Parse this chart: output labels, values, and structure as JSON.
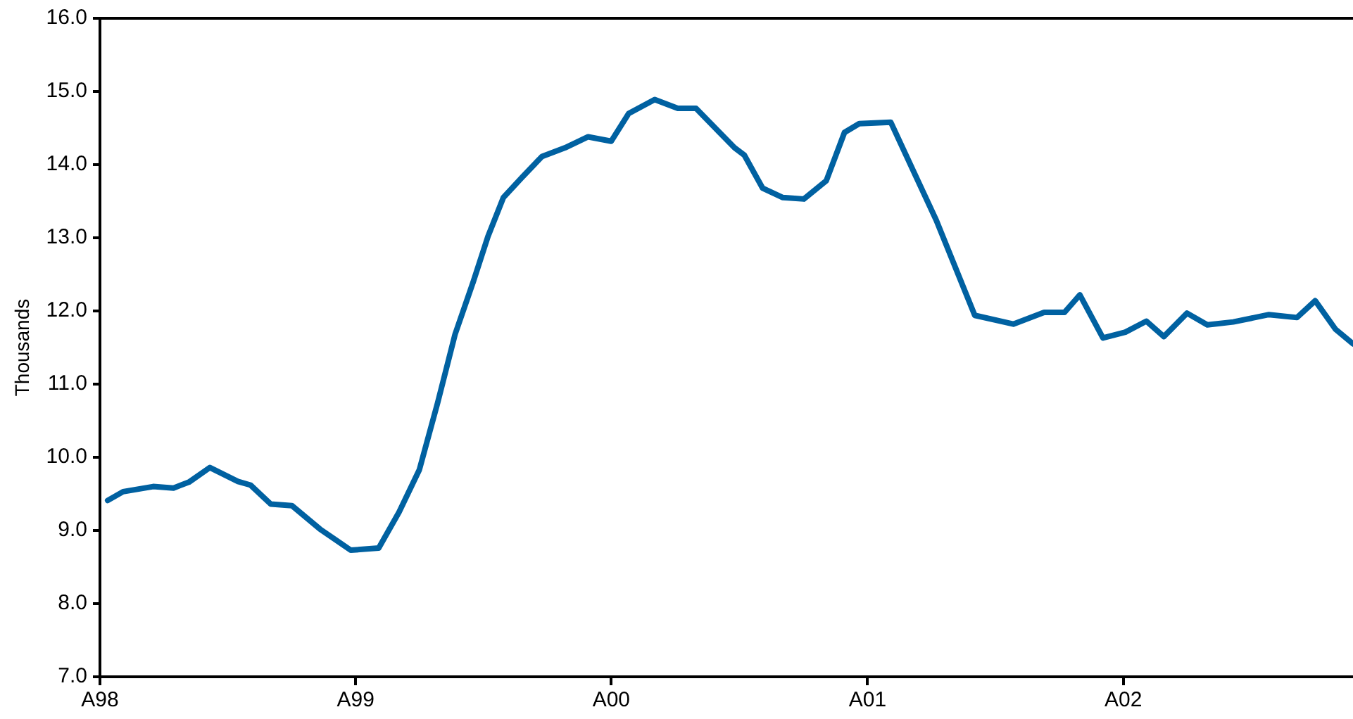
{
  "chart_data": {
    "type": "line",
    "ylabel": "Thousands",
    "xlim": [
      "1998-01-01",
      "2002-11-25"
    ],
    "xticks": [
      {
        "value": "1998-01-01",
        "label": "A98"
      },
      {
        "value": "1999-01-01",
        "label": "A99"
      },
      {
        "value": "2000-01-01",
        "label": "A00"
      },
      {
        "value": "2001-01-01",
        "label": "A01"
      },
      {
        "value": "2002-01-01",
        "label": "A02"
      }
    ],
    "ylim": [
      7,
      16
    ],
    "yticks": [
      {
        "value": 7,
        "label": "7.0"
      },
      {
        "value": 8,
        "label": "8.0"
      },
      {
        "value": 9,
        "label": "9.0"
      },
      {
        "value": 10,
        "label": "10.0"
      },
      {
        "value": 11,
        "label": "11.0"
      },
      {
        "value": 12,
        "label": "12.0"
      },
      {
        "value": 13,
        "label": "13.0"
      },
      {
        "value": 14,
        "label": "14.0"
      },
      {
        "value": 15,
        "label": "15.0"
      },
      {
        "value": 16,
        "label": "16.0"
      }
    ],
    "grid": false,
    "legend": false,
    "marker": "none",
    "line_style": "solid",
    "series": [
      {
        "color": "#0061a1",
        "x": [
          "1998-01-12",
          "1998-02-03",
          "1998-03-18",
          "1998-04-16",
          "1998-05-08",
          "1998-06-07",
          "1998-07-17",
          "1998-08-04",
          "1998-09-02",
          "1998-10-02",
          "1998-11-11",
          "1998-12-25",
          "1999-02-03",
          "1999-03-04",
          "1999-04-02",
          "1999-04-28",
          "1999-05-23",
          "1999-06-18",
          "1999-07-09",
          "1999-07-31",
          "1999-08-26",
          "1999-09-24",
          "1999-10-27",
          "1999-11-29",
          "2000-01-01",
          "2000-01-26",
          "2000-03-03",
          "2000-04-05",
          "2000-05-01",
          "2000-06-25",
          "2000-07-09",
          "2000-08-04",
          "2000-09-02",
          "2000-10-02",
          "2000-11-03",
          "2000-11-29",
          "2000-12-20",
          "2001-02-03",
          "2001-04-09",
          "2001-06-03",
          "2001-07-28",
          "2001-09-10",
          "2001-10-09",
          "2001-10-31",
          "2001-12-03",
          "2002-01-04",
          "2002-02-03",
          "2002-02-28",
          "2002-04-02",
          "2002-05-01",
          "2002-06-07",
          "2002-07-28",
          "2002-09-06",
          "2002-10-02",
          "2002-10-31",
          "2002-11-25"
        ],
        "values": [
          9.41,
          9.53,
          9.6,
          9.58,
          9.66,
          9.86,
          9.67,
          9.62,
          9.36,
          9.34,
          9.02,
          8.73,
          8.76,
          9.25,
          9.83,
          10.74,
          11.68,
          12.4,
          13.02,
          13.55,
          13.82,
          14.11,
          14.23,
          14.38,
          14.32,
          14.7,
          14.89,
          14.77,
          14.77,
          14.23,
          14.13,
          13.68,
          13.55,
          13.53,
          13.78,
          14.44,
          14.56,
          14.58,
          13.24,
          11.94,
          11.82,
          11.98,
          11.98,
          12.22,
          11.63,
          11.71,
          11.86,
          11.65,
          11.97,
          11.81,
          11.85,
          11.95,
          11.91,
          12.14,
          11.75,
          11.55
        ]
      }
    ]
  }
}
